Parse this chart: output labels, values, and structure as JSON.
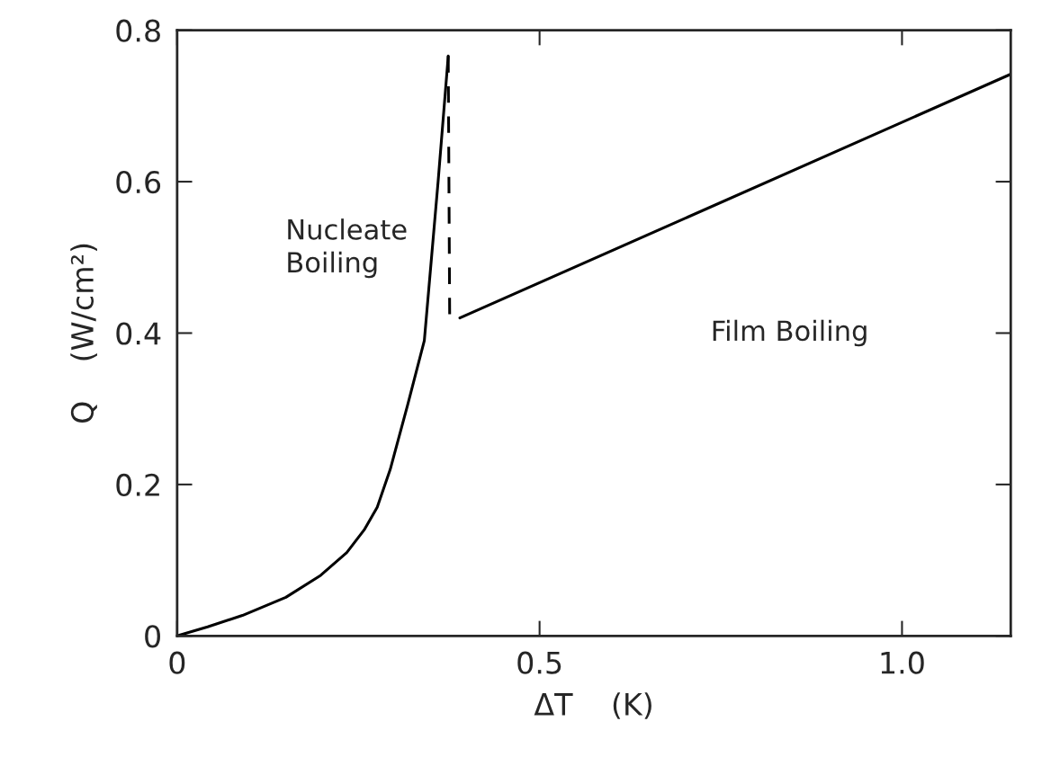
{
  "chart_data": {
    "type": "line",
    "xlabel": "ΔT    (K)",
    "ylabel": "Q    (W/cm²)",
    "xlim": [
      0,
      1.15
    ],
    "ylim": [
      0,
      0.8
    ],
    "xticks": [
      0,
      {
        "value": 0.5,
        "label": "0.5"
      },
      {
        "value": 1.0,
        "label": "1.0"
      }
    ],
    "yticks": [
      0,
      0.2,
      0.4,
      0.6,
      0.8
    ],
    "grid": false,
    "legend": false,
    "marker": "none",
    "annotations": [
      "Nucleate\nBoiling",
      "Film Boiling"
    ],
    "series": [
      {
        "color": "#000000",
        "line_style": "solid",
        "x": [
          0,
          0.042,
          0.09,
          0.15,
          0.198,
          0.234,
          0.258,
          0.276,
          0.294,
          0.318,
          0.341,
          0.36,
          0.374
        ],
        "values": [
          0,
          0.012,
          0.027,
          0.051,
          0.08,
          0.11,
          0.14,
          0.17,
          0.22,
          0.305,
          0.39,
          0.6,
          0.766
        ]
      },
      {
        "color": "#000000",
        "line_style": "dashed",
        "x": [
          0.374,
          0.376
        ],
        "values": [
          0.766,
          0.42
        ]
      },
      {
        "color": "#000000",
        "line_style": "solid",
        "x": [
          0.39,
          1.15
        ],
        "values": [
          0.42,
          0.742
        ]
      }
    ]
  }
}
